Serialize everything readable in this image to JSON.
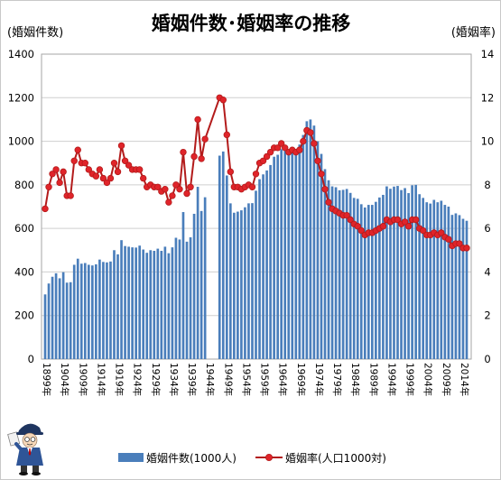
{
  "chart_data": {
    "type": "bar",
    "title": "婚姻件数･婚姻率の推移",
    "ylabel": "(婚姻件数)",
    "y2label": "(婚姻率)",
    "ylim": [
      0,
      1400
    ],
    "y2lim": [
      0,
      14
    ],
    "y_ticks": [
      "0",
      "200",
      "400",
      "600",
      "800",
      "1000",
      "1200",
      "1400"
    ],
    "y2_ticks": [
      "0",
      "2",
      "4",
      "6",
      "8",
      "10",
      "12",
      "14"
    ],
    "x_tick_labels": [
      "1899年",
      "1904年",
      "1909年",
      "1914年",
      "1919年",
      "1924年",
      "1929年",
      "1934年",
      "1939年",
      "1944年",
      "1949年",
      "1954年",
      "1959年",
      "1964年",
      "1969年",
      "1974年",
      "1979年",
      "1984年",
      "1989年",
      "1994年",
      "1999年",
      "2004年",
      "2009年",
      "2014年"
    ],
    "grid": "horizontal",
    "legend_position": "bottom",
    "x": [
      1899,
      1900,
      1901,
      1902,
      1903,
      1904,
      1905,
      1906,
      1907,
      1908,
      1909,
      1910,
      1911,
      1912,
      1913,
      1914,
      1915,
      1916,
      1917,
      1918,
      1919,
      1920,
      1921,
      1922,
      1923,
      1924,
      1925,
      1926,
      1927,
      1928,
      1929,
      1930,
      1931,
      1932,
      1933,
      1934,
      1935,
      1936,
      1937,
      1938,
      1939,
      1940,
      1941,
      1942,
      1943,
      1944,
      1945,
      1946,
      1947,
      1948,
      1949,
      1950,
      1951,
      1952,
      1953,
      1954,
      1955,
      1956,
      1957,
      1958,
      1959,
      1960,
      1961,
      1962,
      1963,
      1964,
      1965,
      1966,
      1967,
      1968,
      1969,
      1970,
      1971,
      1972,
      1973,
      1974,
      1975,
      1976,
      1977,
      1978,
      1979,
      1980,
      1981,
      1982,
      1983,
      1984,
      1985,
      1986,
      1987,
      1988,
      1989,
      1990,
      1991,
      1992,
      1993,
      1994,
      1995,
      1996,
      1997,
      1998,
      1999,
      2000,
      2001,
      2002,
      2003,
      2004,
      2005,
      2006,
      2007,
      2008,
      2009,
      2010,
      2011,
      2012,
      2013,
      2014,
      2015
    ],
    "series": [
      {
        "name": "婚姻件数(1000人)",
        "type": "bar",
        "axis": "left",
        "color": "#4a7ebb",
        "values": [
          297,
          347,
          378,
          394,
          371,
          399,
          351,
          353,
          433,
          461,
          438,
          441,
          433,
          430,
          435,
          457,
          446,
          444,
          448,
          500,
          481,
          546,
          519,
          516,
          513,
          512,
          521,
          503,
          488,
          500,
          497,
          507,
          497,
          516,
          486,
          513,
          557,
          549,
          675,
          539,
          559,
          667,
          791,
          680,
          743,
          null,
          null,
          null,
          934,
          953,
          843,
          715,
          672,
          677,
          683,
          697,
          715,
          716,
          773,
          826,
          848,
          866,
          891,
          929,
          938,
          964,
          955,
          940,
          954,
          957,
          985,
          1029,
          1092,
          1100,
          1072,
          1000,
          942,
          872,
          821,
          793,
          789,
          775,
          777,
          781,
          763,
          740,
          736,
          711,
          696,
          708,
          708,
          722,
          742,
          754,
          793,
          782,
          792,
          795,
          776,
          785,
          762,
          798,
          800,
          757,
          740,
          720,
          714,
          731,
          720,
          727,
          708,
          700,
          662,
          669,
          661,
          644,
          635
        ]
      },
      {
        "name": "婚姻率(人口1000対)",
        "type": "line",
        "axis": "right",
        "color": "#b31b1b",
        "marker_color": "#e0242a",
        "values": [
          6.9,
          7.9,
          8.5,
          8.7,
          8.1,
          8.6,
          7.5,
          7.5,
          9.1,
          9.6,
          9.0,
          9.0,
          8.7,
          8.5,
          8.4,
          8.7,
          8.3,
          8.1,
          8.3,
          9.0,
          8.6,
          9.8,
          9.1,
          8.9,
          8.7,
          8.7,
          8.7,
          8.3,
          7.9,
          8.0,
          7.9,
          7.9,
          7.7,
          7.8,
          7.2,
          7.5,
          8.0,
          7.8,
          9.5,
          7.6,
          7.9,
          9.3,
          11.0,
          9.2,
          10.1,
          null,
          null,
          null,
          12.0,
          11.9,
          10.3,
          8.6,
          7.9,
          7.9,
          7.8,
          7.9,
          8.0,
          7.9,
          8.5,
          9.0,
          9.1,
          9.3,
          9.5,
          9.7,
          9.7,
          9.9,
          9.7,
          9.5,
          9.6,
          9.5,
          9.6,
          10.0,
          10.5,
          10.4,
          9.9,
          9.1,
          8.5,
          7.8,
          7.2,
          6.9,
          6.8,
          6.7,
          6.6,
          6.6,
          6.4,
          6.2,
          6.1,
          5.9,
          5.7,
          5.8,
          5.8,
          5.9,
          6.0,
          6.1,
          6.4,
          6.3,
          6.4,
          6.4,
          6.2,
          6.3,
          6.1,
          6.4,
          6.4,
          6.0,
          5.9,
          5.7,
          5.7,
          5.8,
          5.7,
          5.8,
          5.6,
          5.5,
          5.2,
          5.3,
          5.3,
          5.1,
          5.1
        ]
      }
    ]
  }
}
